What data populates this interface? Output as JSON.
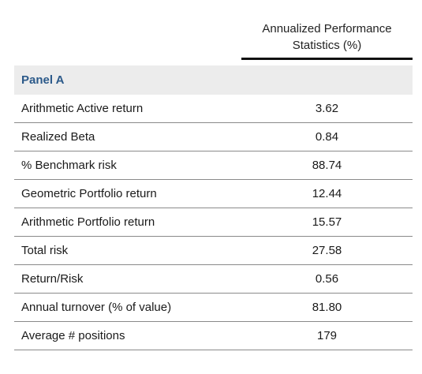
{
  "header": {
    "line1": "Annualized Performance",
    "line2": "Statistics (%)"
  },
  "panel": {
    "title": "Panel A"
  },
  "rows": [
    {
      "label": "Arithmetic Active return",
      "value": "3.62"
    },
    {
      "label": "Realized Beta",
      "value": "0.84"
    },
    {
      "label": "% Benchmark risk",
      "value": "88.74"
    },
    {
      "label": "Geometric Portfolio return",
      "value": "12.44"
    },
    {
      "label": "Arithmetic Portfolio return",
      "value": "15.57"
    },
    {
      "label": "Total risk",
      "value": "27.58"
    },
    {
      "label": "Return/Risk",
      "value": "0.56"
    },
    {
      "label": "Annual turnover (% of value)",
      "value": "81.80"
    },
    {
      "label": "Average # positions",
      "value": "179"
    }
  ],
  "colors": {
    "panel_title": "#2c5a8a",
    "panel_background": "#ececec",
    "header_rule": "#111111",
    "row_divider": "#8a8a8a"
  }
}
